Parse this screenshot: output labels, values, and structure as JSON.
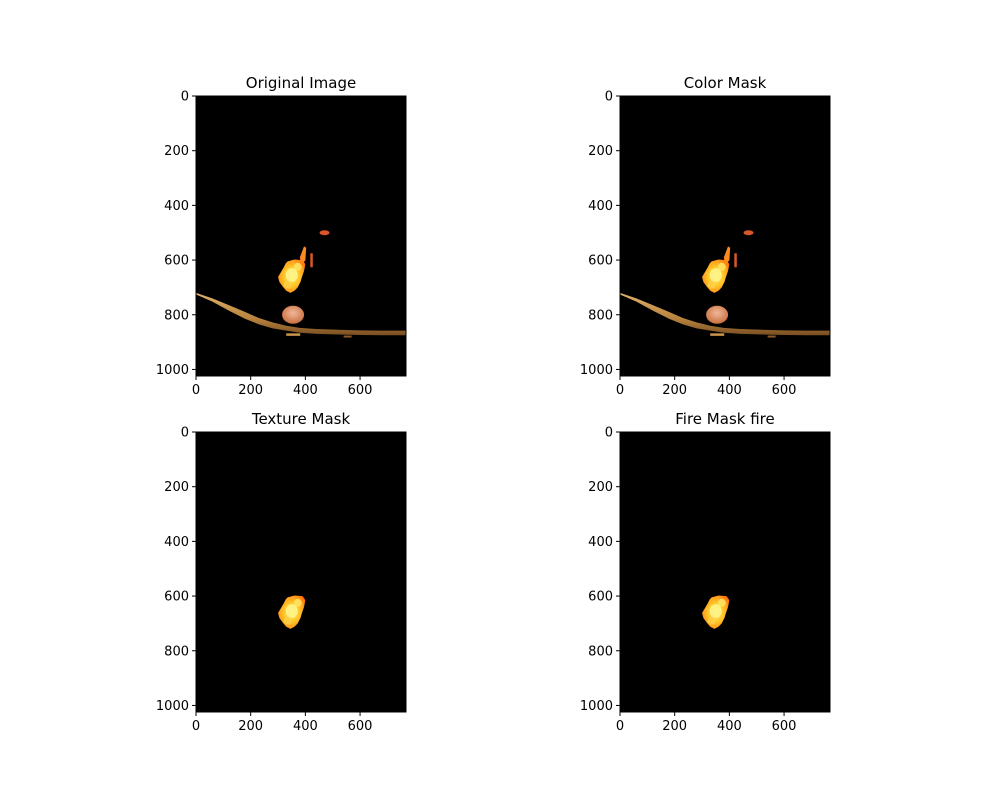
{
  "figure": {
    "panels": [
      {
        "title": "Original Image",
        "content": "full"
      },
      {
        "title": "Color Mask",
        "content": "full"
      },
      {
        "title": "Texture Mask",
        "content": "fire"
      },
      {
        "title": "Fire Mask fire",
        "content": "fire"
      }
    ]
  },
  "chart_data": [
    {
      "type": "image",
      "title": "Original Image",
      "xlim": [
        0,
        768
      ],
      "ylim": [
        1024,
        0
      ],
      "xticks": [
        0,
        200,
        400,
        600
      ],
      "yticks": [
        0,
        200,
        400,
        600,
        800,
        1000
      ]
    },
    {
      "type": "image",
      "title": "Color Mask",
      "xlim": [
        0,
        768
      ],
      "ylim": [
        1024,
        0
      ],
      "xticks": [
        0,
        200,
        400,
        600
      ],
      "yticks": [
        0,
        200,
        400,
        600,
        800,
        1000
      ]
    },
    {
      "type": "image",
      "title": "Texture Mask",
      "xlim": [
        0,
        768
      ],
      "ylim": [
        1024,
        0
      ],
      "xticks": [
        0,
        200,
        400,
        600
      ],
      "yticks": [
        0,
        200,
        400,
        600,
        800,
        1000
      ]
    },
    {
      "type": "image",
      "title": "Fire Mask fire",
      "xlim": [
        0,
        768
      ],
      "ylim": [
        1024,
        0
      ],
      "xticks": [
        0,
        200,
        400,
        600
      ],
      "yticks": [
        0,
        200,
        400,
        600,
        800,
        1000
      ]
    }
  ],
  "colors": {
    "background": "#000000",
    "fire_core": "#ffe13a",
    "fire_mid": "#ffb020",
    "fire_edge": "#ff6a00",
    "branch": "#c9954a",
    "branch_dark": "#8a5a26",
    "ember": "#d9552b"
  }
}
